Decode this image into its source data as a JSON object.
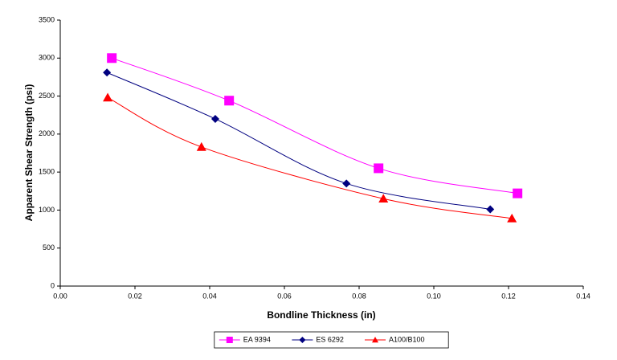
{
  "chart_data": {
    "type": "line",
    "smooth": true,
    "x_label": "Bondline Thickness (in)",
    "y_label": "Apparent Shear Strength (psi)",
    "xlim": [
      0,
      0.14
    ],
    "xticks": [
      {
        "value": 0,
        "label": "0.00"
      },
      {
        "value": 0.02,
        "label": "0.02"
      },
      {
        "value": 0.04,
        "label": "0.04"
      },
      {
        "value": 0.06,
        "label": "0.06"
      },
      {
        "value": 0.08,
        "label": "0.08"
      },
      {
        "value": 0.1,
        "label": "0.10"
      },
      {
        "value": 0.12,
        "label": "0.12"
      },
      {
        "value": 0.14,
        "label": "0.14"
      }
    ],
    "ylim": [
      0,
      3500
    ],
    "yticks": [
      0,
      500,
      1000,
      1500,
      2000,
      2500,
      3000,
      3500
    ],
    "legend": "bottom",
    "series": [
      {
        "name": "EA 9394",
        "color": "#ff00ff",
        "marker": "square",
        "x": [
          0.0138,
          0.0452,
          0.0852,
          0.1224
        ],
        "values": [
          3000,
          2440,
          1550,
          1220
        ]
      },
      {
        "name": "ES 6292",
        "color": "#000080",
        "marker": "diamond",
        "x": [
          0.0125,
          0.0415,
          0.0766,
          0.1151
        ],
        "values": [
          2810,
          2200,
          1350,
          1010
        ]
      },
      {
        "name": "A100/B100",
        "color": "#ff0000",
        "marker": "triangle",
        "x": [
          0.0127,
          0.0378,
          0.0865,
          0.1209
        ],
        "values": [
          2480,
          1830,
          1150,
          890
        ]
      }
    ]
  }
}
